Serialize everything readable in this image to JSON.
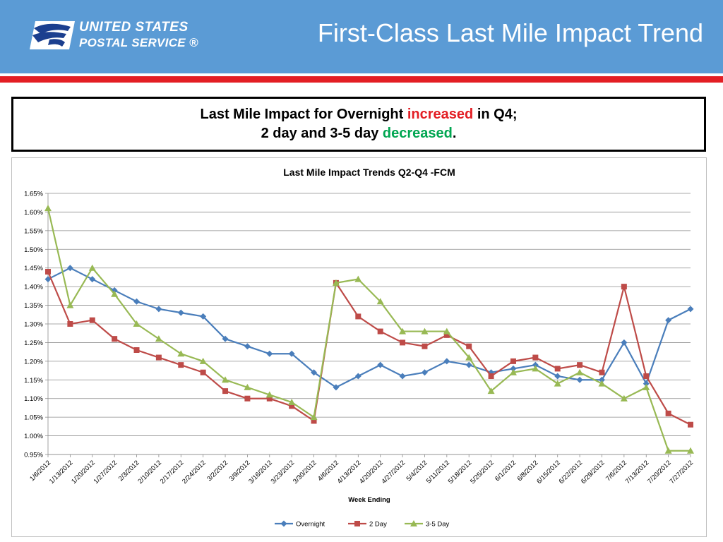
{
  "header": {
    "logo_line1": "UNITED STATES",
    "logo_line2": "POSTAL SERVICE ®",
    "title": "First-Class Last Mile Impact Trend",
    "background_color": "#5b9bd5",
    "stripe_color": "#e31e24",
    "logo_icon": "eagle-icon"
  },
  "callout": {
    "line1_prefix": "Last Mile Impact for Overnight ",
    "line1_highlight": "increased",
    "line1_suffix": " in Q4;",
    "line2_prefix": "2 day and 3-5 day ",
    "line2_highlight": "decreased",
    "line2_suffix": ".",
    "increase_color": "#e31e24",
    "decrease_color": "#00a651"
  },
  "chart_data": {
    "type": "line",
    "title": "Last Mile Impact Trends Q2-Q4 -FCM",
    "xlabel": "Week Ending",
    "ylabel": "",
    "ylim": [
      0.95,
      1.65
    ],
    "ytick_step": 0.05,
    "ytick_format": "percent_2dp",
    "grid": true,
    "legend_position": "bottom",
    "categories": [
      "1/6/2012",
      "1/13/2012",
      "1/20/2012",
      "1/27/2012",
      "2/3/2012",
      "2/10/2012",
      "2/17/2012",
      "2/24/2012",
      "3/2/2012",
      "3/9/2012",
      "3/16/2012",
      "3/23/2012",
      "3/30/2012",
      "4/6/2012",
      "4/13/2012",
      "4/20/2012",
      "4/27/2012",
      "5/4/2012",
      "5/11/2012",
      "5/18/2012",
      "5/25/2012",
      "6/1/2012",
      "6/8/2012",
      "6/15/2012",
      "6/22/2012",
      "6/29/2012",
      "7/6/2012",
      "7/13/2012",
      "7/20/2012",
      "7/27/2012"
    ],
    "series": [
      {
        "name": "Overnight",
        "color": "#4a7ebb",
        "marker": "diamond",
        "values": [
          1.42,
          1.45,
          1.42,
          1.39,
          1.36,
          1.34,
          1.33,
          1.32,
          1.26,
          1.24,
          1.22,
          1.22,
          1.17,
          1.13,
          1.16,
          1.19,
          1.16,
          1.17,
          1.2,
          1.19,
          1.17,
          1.18,
          1.19,
          1.16,
          1.15,
          1.15,
          1.25,
          1.14,
          1.31,
          1.34
        ]
      },
      {
        "name": "2 Day",
        "color": "#be4b48",
        "marker": "square",
        "values": [
          1.44,
          1.3,
          1.31,
          1.26,
          1.23,
          1.21,
          1.19,
          1.17,
          1.12,
          1.1,
          1.1,
          1.08,
          1.04,
          1.41,
          1.32,
          1.28,
          1.25,
          1.24,
          1.27,
          1.24,
          1.16,
          1.2,
          1.21,
          1.18,
          1.19,
          1.17,
          1.4,
          1.16,
          1.06,
          1.03
        ]
      },
      {
        "name": "3-5 Day",
        "color": "#98b954",
        "marker": "triangle",
        "values": [
          1.61,
          1.35,
          1.45,
          1.38,
          1.3,
          1.26,
          1.22,
          1.2,
          1.15,
          1.13,
          1.11,
          1.09,
          1.05,
          1.41,
          1.42,
          1.36,
          1.28,
          1.28,
          1.28,
          1.21,
          1.12,
          1.17,
          1.18,
          1.14,
          1.17,
          1.14,
          1.1,
          1.13,
          0.96,
          0.96
        ]
      }
    ]
  }
}
